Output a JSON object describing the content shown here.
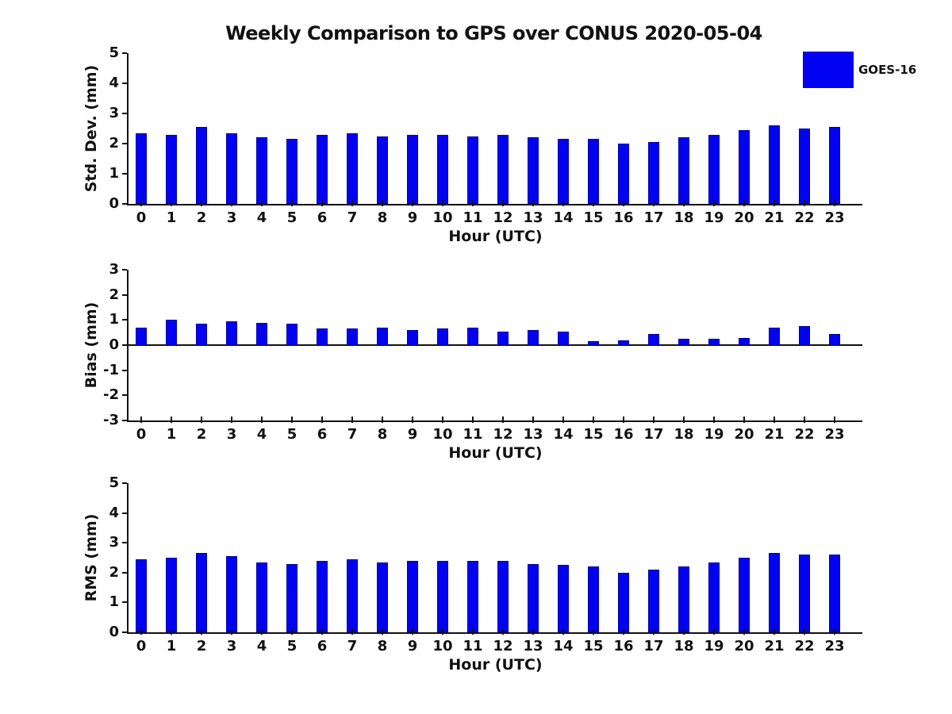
{
  "title": "Weekly Comparison to GPS over CONUS 2020-05-04",
  "legend": {
    "label": "GOES-16",
    "color": "#0202f2",
    "position": "top-right"
  },
  "chart_data": [
    {
      "type": "bar",
      "ylabel": "Std. Dev. (mm)",
      "xlabel": "Hour (UTC)",
      "categories": [
        0,
        1,
        2,
        3,
        4,
        5,
        6,
        7,
        8,
        9,
        10,
        11,
        12,
        13,
        14,
        15,
        16,
        17,
        18,
        19,
        20,
        21,
        22,
        23
      ],
      "series": [
        {
          "name": "GOES-16",
          "values": [
            2.35,
            2.3,
            2.55,
            2.35,
            2.2,
            2.15,
            2.3,
            2.35,
            2.25,
            2.3,
            2.3,
            2.25,
            2.3,
            2.2,
            2.15,
            2.15,
            2.0,
            2.05,
            2.2,
            2.3,
            2.45,
            2.6,
            2.5,
            2.55
          ]
        }
      ],
      "ylim": [
        0,
        5
      ],
      "yticks": [
        0,
        1,
        2,
        3,
        4,
        5
      ],
      "bar_color": "#0202f2",
      "grid": false
    },
    {
      "type": "bar",
      "ylabel": "Bias (mm)",
      "xlabel": "Hour (UTC)",
      "categories": [
        0,
        1,
        2,
        3,
        4,
        5,
        6,
        7,
        8,
        9,
        10,
        11,
        12,
        13,
        14,
        15,
        16,
        17,
        18,
        19,
        20,
        21,
        22,
        23
      ],
      "series": [
        {
          "name": "GOES-16",
          "values": [
            0.7,
            1.0,
            0.85,
            0.95,
            0.9,
            0.85,
            0.65,
            0.65,
            0.7,
            0.6,
            0.65,
            0.7,
            0.55,
            0.6,
            0.55,
            0.15,
            0.2,
            0.45,
            0.25,
            0.25,
            0.3,
            0.7,
            0.75,
            0.45
          ]
        }
      ],
      "ylim": [
        -3,
        3
      ],
      "yticks": [
        3,
        2,
        1,
        0,
        -1,
        -2,
        -3
      ],
      "bar_color": "#0202f2",
      "grid": false
    },
    {
      "type": "bar",
      "ylabel": "RMS (mm)",
      "xlabel": "Hour (UTC)",
      "categories": [
        0,
        1,
        2,
        3,
        4,
        5,
        6,
        7,
        8,
        9,
        10,
        11,
        12,
        13,
        14,
        15,
        16,
        17,
        18,
        19,
        20,
        21,
        22,
        23
      ],
      "series": [
        {
          "name": "GOES-16",
          "values": [
            2.45,
            2.5,
            2.65,
            2.55,
            2.35,
            2.3,
            2.4,
            2.45,
            2.35,
            2.4,
            2.4,
            2.4,
            2.4,
            2.3,
            2.25,
            2.2,
            2.0,
            2.1,
            2.2,
            2.35,
            2.5,
            2.65,
            2.6,
            2.6
          ]
        }
      ],
      "ylim": [
        0,
        5
      ],
      "yticks": [
        0,
        1,
        2,
        3,
        4,
        5
      ],
      "bar_color": "#0202f2",
      "grid": false
    }
  ]
}
